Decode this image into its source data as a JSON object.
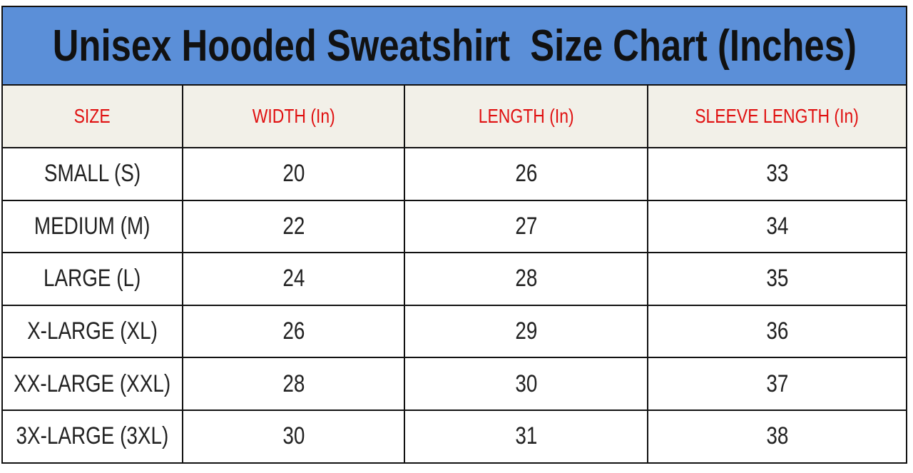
{
  "header": {
    "title": "Unisex Hooded Sweatshirt  Size Chart (Inches)"
  },
  "table": {
    "columns": [
      "SIZE",
      "WIDTH (In)",
      "LENGTH (In)",
      "SLEEVE LENGTH (In)"
    ],
    "rows": [
      [
        "SMALL (S)",
        20,
        26,
        33
      ],
      [
        "MEDIUM (M)",
        22,
        27,
        34
      ],
      [
        "LARGE (L)",
        24,
        28,
        35
      ],
      [
        "X-LARGE (XL)",
        26,
        29,
        36
      ],
      [
        "XX-LARGE (XXL)",
        28,
        30,
        37
      ],
      [
        "3X-LARGE (3XL)",
        30,
        31,
        38
      ]
    ]
  }
}
